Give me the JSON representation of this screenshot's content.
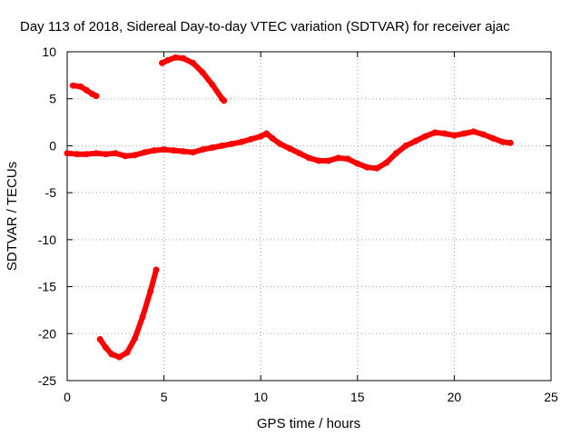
{
  "chart_data": {
    "type": "scatter",
    "title": "Day 113 of 2018, Sidereal Day-to-day VTEC variation (SDTVAR) for receiver ajac",
    "xlabel": "GPS time / hours",
    "ylabel": "SDTVAR / TECUs",
    "xlim": [
      0,
      25
    ],
    "ylim": [
      -25,
      10
    ],
    "xticks": [
      0,
      5,
      10,
      15,
      20,
      25
    ],
    "yticks": [
      -25,
      -20,
      -15,
      -10,
      -5,
      0,
      5,
      10
    ],
    "grid": true,
    "series_color": "#ff0000",
    "series": [
      {
        "name": "main-track",
        "points": [
          [
            0.0,
            -0.8
          ],
          [
            0.5,
            -0.9
          ],
          [
            1.0,
            -0.9
          ],
          [
            1.5,
            -0.8
          ],
          [
            2.0,
            -0.9
          ],
          [
            2.5,
            -0.8
          ],
          [
            3.0,
            -1.1
          ],
          [
            3.5,
            -1.0
          ],
          [
            4.0,
            -0.7
          ],
          [
            4.5,
            -0.5
          ],
          [
            5.0,
            -0.4
          ],
          [
            5.5,
            -0.5
          ],
          [
            6.0,
            -0.6
          ],
          [
            6.5,
            -0.7
          ],
          [
            7.0,
            -0.4
          ],
          [
            7.5,
            -0.2
          ],
          [
            8.0,
            0.0
          ],
          [
            8.5,
            0.2
          ],
          [
            9.0,
            0.4
          ],
          [
            9.5,
            0.7
          ],
          [
            10.0,
            1.0
          ],
          [
            10.3,
            1.3
          ],
          [
            10.6,
            0.8
          ],
          [
            11.0,
            0.2
          ],
          [
            11.5,
            -0.3
          ],
          [
            12.0,
            -0.8
          ],
          [
            12.5,
            -1.3
          ],
          [
            13.0,
            -1.6
          ],
          [
            13.5,
            -1.6
          ],
          [
            14.0,
            -1.3
          ],
          [
            14.5,
            -1.4
          ],
          [
            15.0,
            -1.9
          ],
          [
            15.5,
            -2.3
          ],
          [
            16.0,
            -2.4
          ],
          [
            16.5,
            -1.8
          ],
          [
            17.0,
            -0.8
          ],
          [
            17.5,
            0.0
          ],
          [
            18.0,
            0.5
          ],
          [
            18.5,
            1.0
          ],
          [
            19.0,
            1.4
          ],
          [
            19.5,
            1.3
          ],
          [
            20.0,
            1.1
          ],
          [
            20.5,
            1.3
          ],
          [
            21.0,
            1.5
          ],
          [
            21.5,
            1.2
          ],
          [
            22.0,
            0.8
          ],
          [
            22.5,
            0.4
          ],
          [
            22.9,
            0.3
          ]
        ]
      },
      {
        "name": "segment-early-positive",
        "points": [
          [
            0.3,
            6.4
          ],
          [
            0.7,
            6.3
          ],
          [
            1.0,
            5.9
          ],
          [
            1.3,
            5.5
          ],
          [
            1.5,
            5.3
          ]
        ]
      },
      {
        "name": "segment-arc-positive",
        "points": [
          [
            4.9,
            8.8
          ],
          [
            5.2,
            9.1
          ],
          [
            5.6,
            9.4
          ],
          [
            6.0,
            9.3
          ],
          [
            6.5,
            8.8
          ],
          [
            7.0,
            7.8
          ],
          [
            7.5,
            6.5
          ],
          [
            8.0,
            5.0
          ],
          [
            8.1,
            4.8
          ]
        ]
      },
      {
        "name": "segment-dip-negative",
        "points": [
          [
            1.7,
            -20.6
          ],
          [
            2.0,
            -21.5
          ],
          [
            2.3,
            -22.2
          ],
          [
            2.7,
            -22.5
          ],
          [
            3.1,
            -22.0
          ],
          [
            3.5,
            -20.5
          ],
          [
            3.9,
            -18.2
          ],
          [
            4.3,
            -15.5
          ],
          [
            4.6,
            -13.2
          ]
        ]
      }
    ]
  }
}
